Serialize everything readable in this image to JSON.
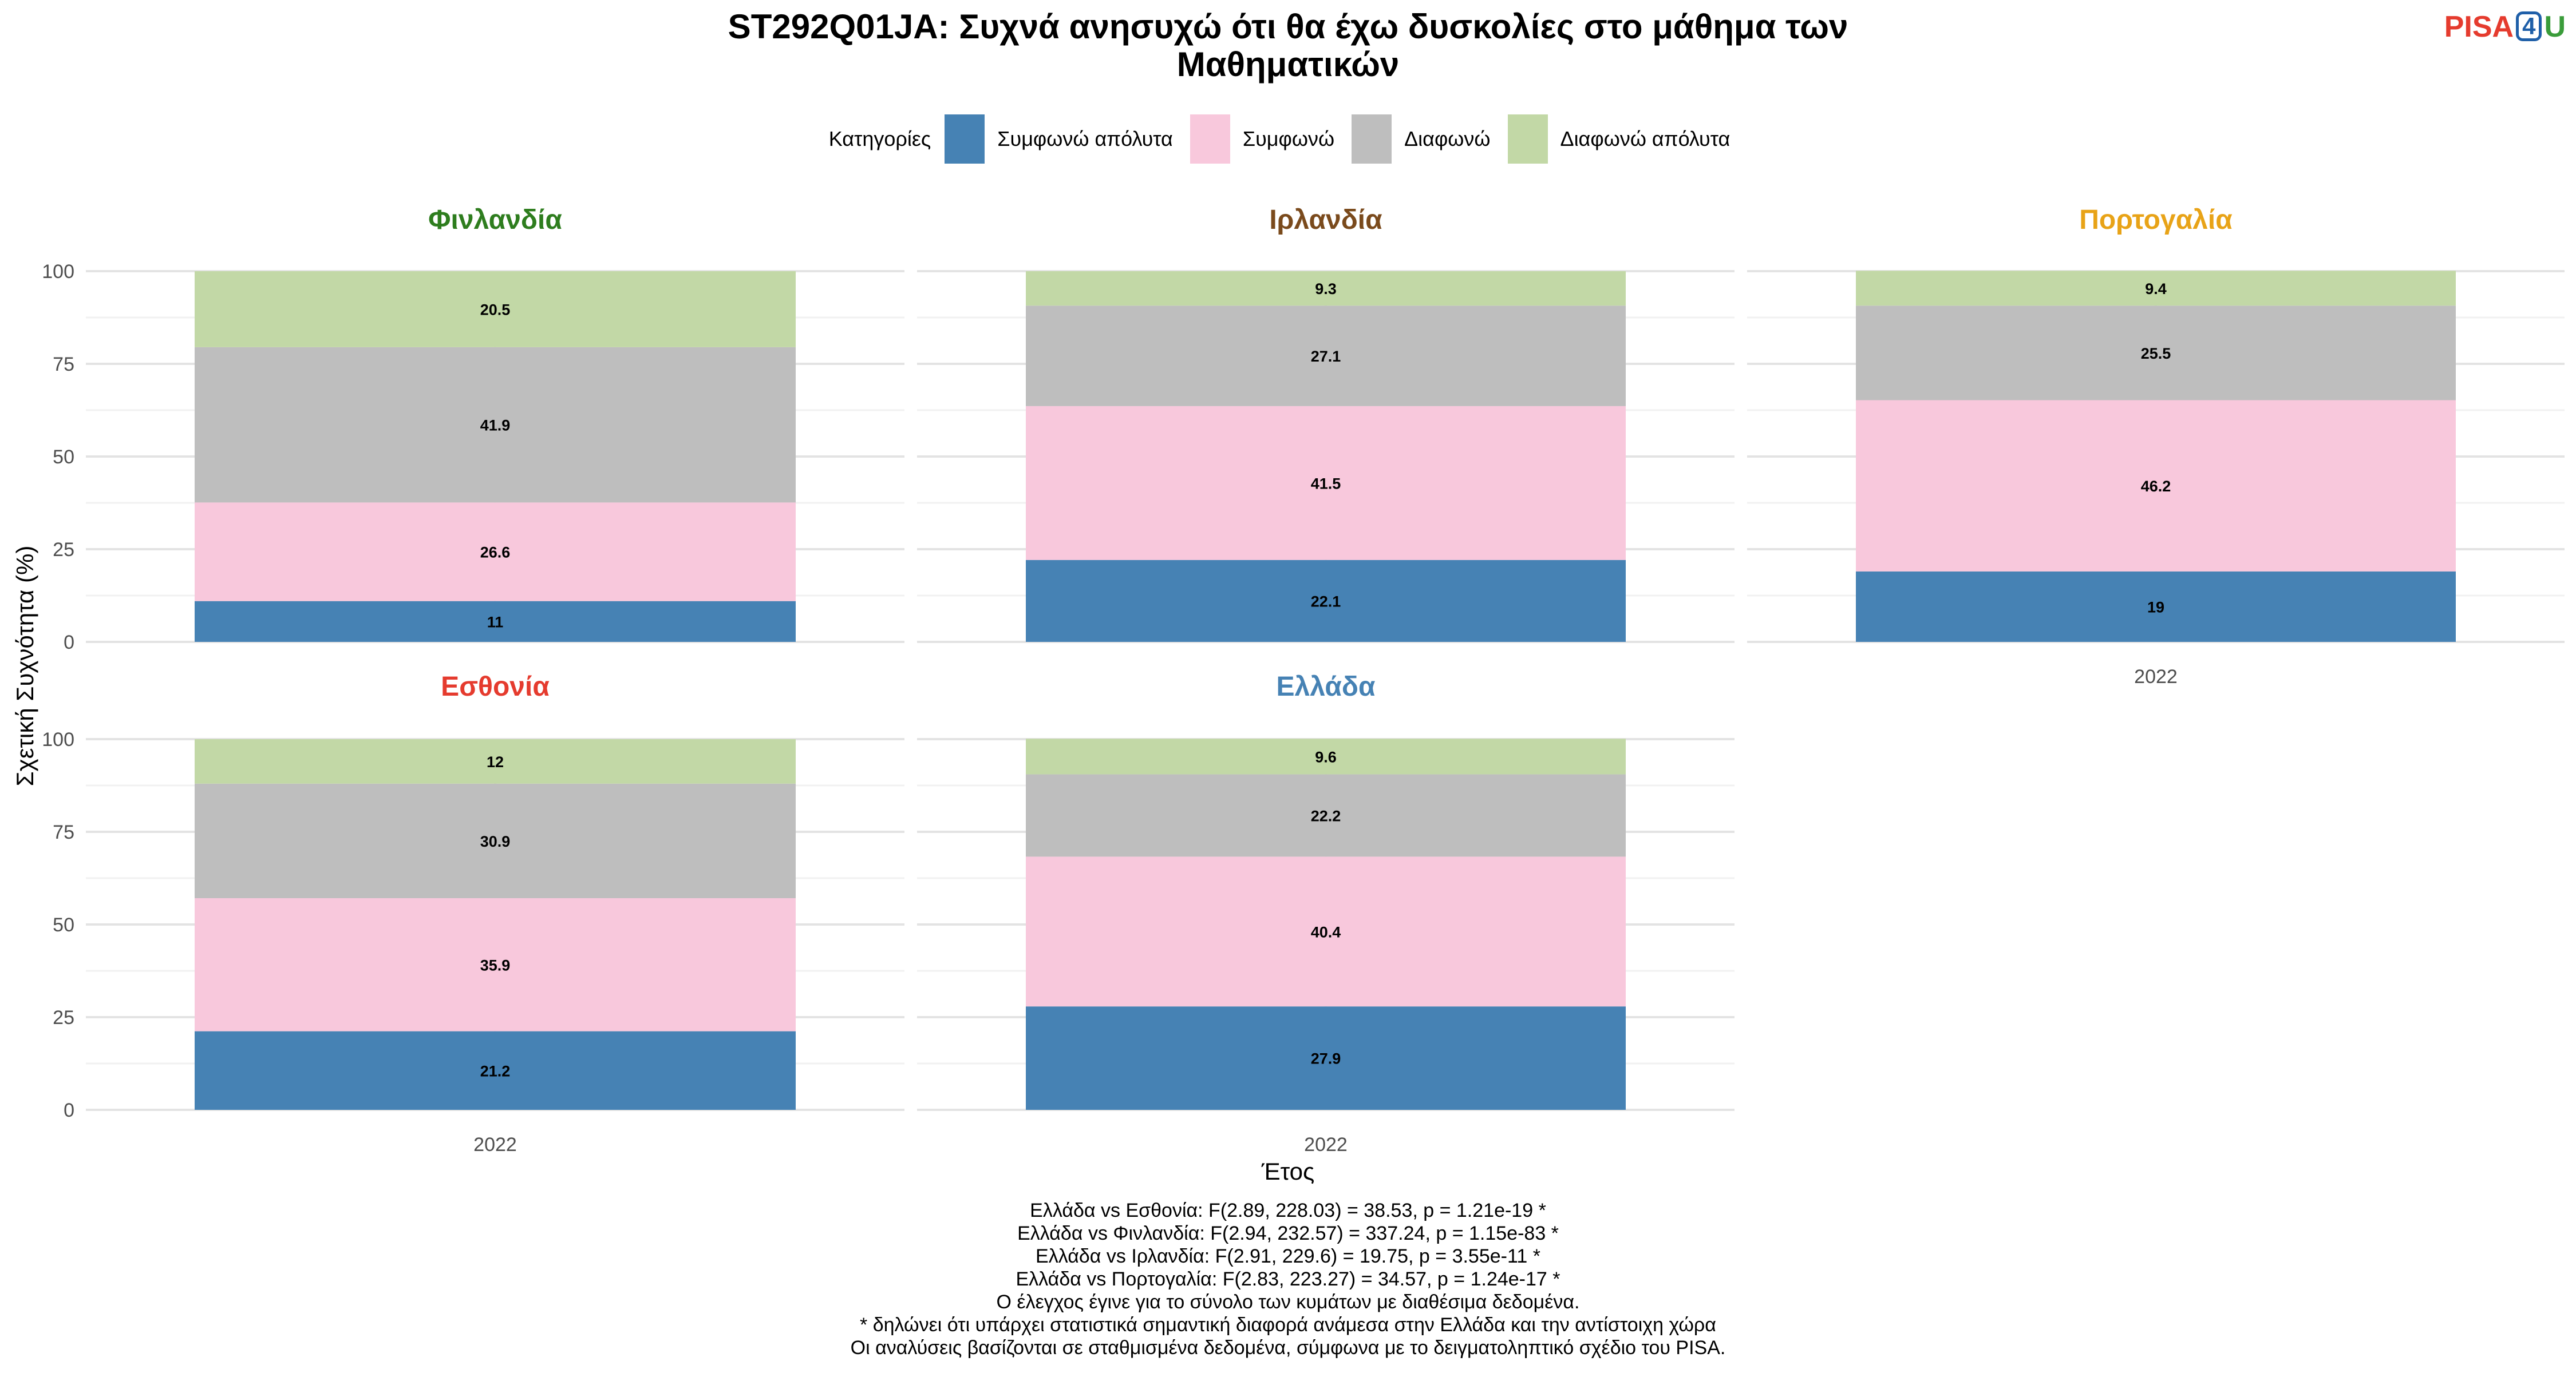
{
  "title_line1": "ST292Q01JA: Συχνά ανησυχώ ότι θα έχω δυσκολίες στο μάθημα των",
  "title_line2": "Μαθηματικών",
  "logo": {
    "part1": "PISA",
    "part2": "4",
    "part3": "U"
  },
  "legend": {
    "title": "Κατηγορίες",
    "items": [
      {
        "label": "Συμφωνώ απόλυτα",
        "color": "#4682b4"
      },
      {
        "label": "Συμφωνώ",
        "color": "#f8c8dc"
      },
      {
        "label": "Διαφωνώ",
        "color": "#bebebe"
      },
      {
        "label": "Διαφωνώ απόλυτα",
        "color": "#c2d8a6"
      }
    ]
  },
  "ylabel": "Σχετική Συχνότητα (%)",
  "xlabel": "Έτος",
  "notes": [
    "Ελλάδα vs Εσθονία: F(2.89, 228.03) = 38.53, p = 1.21e-19 *",
    "Ελλάδα vs Φινλανδία: F(2.94, 232.57) = 337.24, p = 1.15e-83 *",
    "Ελλάδα vs Ιρλανδία: F(2.91, 229.6) = 19.75, p = 3.55e-11 *",
    "Ελλάδα vs Πορτογαλία: F(2.83, 223.27) = 34.57, p = 1.24e-17 *",
    "Ο έλεγχος έγινε για το σύνολο των κυμάτων με διαθέσιμα δεδομένα.",
    "* δηλώνει ότι υπάρχει στατιστικά σημαντική διαφορά ανάμεσα στην Ελλάδα και την αντίστοιχη χώρα",
    "Οι αναλύσεις βασίζονται σε σταθμισμένα δεδομένα, σύμφωνα με το δειγματοληπτικό σχέδιο του PISA."
  ],
  "chart_data": {
    "type": "bar",
    "stacked": true,
    "categories": [
      "2022"
    ],
    "ylim": [
      0,
      100
    ],
    "yticks": [
      0,
      25,
      50,
      75,
      100
    ],
    "series_order": [
      "Συμφωνώ απόλυτα",
      "Συμφωνώ",
      "Διαφωνώ",
      "Διαφωνώ απόλυτα"
    ],
    "panels": [
      {
        "country": "Φινλανδία",
        "title_color": "#2e7d1e",
        "values": [
          11,
          26.6,
          41.9,
          20.5
        ],
        "labels": [
          "11",
          "26.6",
          "41.9",
          "20.5"
        ]
      },
      {
        "country": "Ιρλανδία",
        "title_color": "#7a4a1c",
        "values": [
          22.1,
          41.5,
          27.1,
          9.3
        ],
        "labels": [
          "22.1",
          "41.5",
          "27.1",
          "9.3"
        ]
      },
      {
        "country": "Πορτογαλία",
        "title_color": "#e8a317",
        "values": [
          19,
          46.2,
          25.5,
          9.4
        ],
        "labels": [
          "19",
          "46.2",
          "25.5",
          "9.4"
        ]
      },
      {
        "country": "Εσθονία",
        "title_color": "#e53b2e",
        "values": [
          21.2,
          35.9,
          30.9,
          12
        ],
        "labels": [
          "21.2",
          "35.9",
          "30.9",
          "12"
        ]
      },
      {
        "country": "Ελλάδα",
        "title_color": "#4682b4",
        "values": [
          27.9,
          40.4,
          22.2,
          9.6
        ],
        "labels": [
          "27.9",
          "40.4",
          "22.2",
          "9.6"
        ]
      }
    ]
  }
}
